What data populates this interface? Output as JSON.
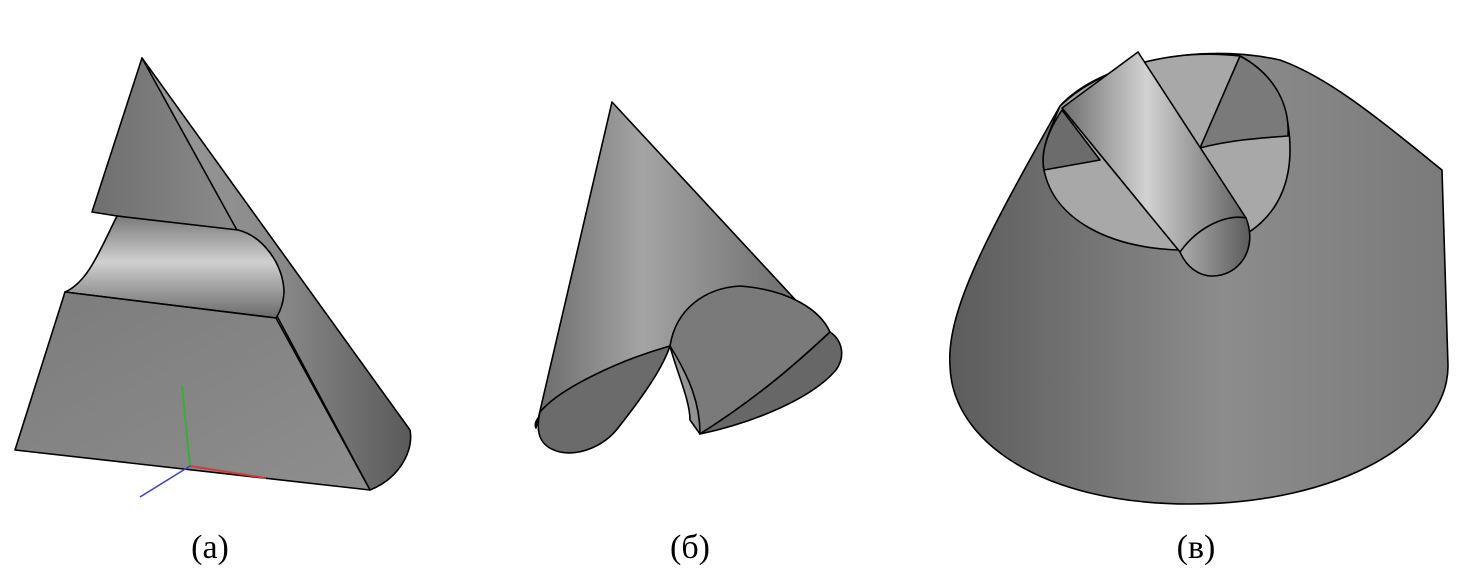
{
  "figure": {
    "panels": [
      {
        "id": "a",
        "caption": "(а)"
      },
      {
        "id": "b",
        "caption": "(б)"
      },
      {
        "id": "c",
        "caption": "(в)"
      }
    ],
    "colors": {
      "background": "#ffffff",
      "face_dark": "#6b6b6b",
      "face_mid": "#8a8a8a",
      "face_light": "#a2a2a2",
      "edge": "#000000",
      "axis_x": "#d43c3c",
      "axis_y": "#35b035",
      "axis_z": "#3f3fd4"
    }
  }
}
